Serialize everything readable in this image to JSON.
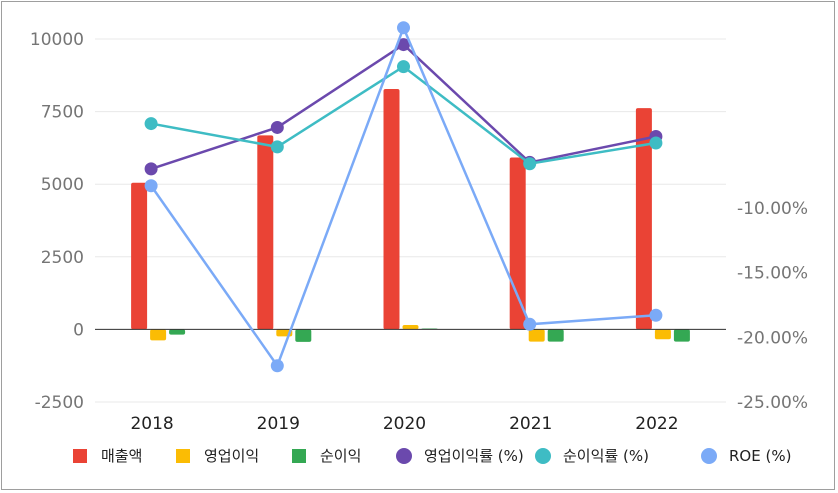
{
  "chart_data": {
    "type": "bar",
    "categories": [
      "2018",
      "2019",
      "2020",
      "2021",
      "2022"
    ],
    "left_axis": {
      "ylim": [
        -2500,
        10000
      ],
      "ticks": [
        "10000",
        "7500",
        "5000",
        "2500",
        "0",
        "-2500"
      ]
    },
    "right_axis": {
      "ylim": [
        -25,
        -5
      ],
      "ticks": [
        "-10.00%",
        "-15.00%",
        "-20.00%",
        "-25.00%"
      ]
    },
    "grid": true,
    "legend_position": "bottom",
    "series": [
      {
        "name": "매출액",
        "type": "bar",
        "axis": "left",
        "color": "#ea4335",
        "values": [
          5050,
          6680,
          8280,
          5920,
          7620
        ]
      },
      {
        "name": "영업이익",
        "type": "bar",
        "axis": "left",
        "color": "#fbbc04",
        "values": [
          -380,
          -240,
          150,
          -420,
          -340
        ]
      },
      {
        "name": "순이익",
        "type": "bar",
        "axis": "left",
        "color": "#34a853",
        "values": [
          -180,
          -430,
          30,
          -420,
          -420
        ]
      },
      {
        "name": "영업이익률 (%)",
        "type": "line",
        "axis": "right",
        "color": "#6b49ad",
        "values": [
          -7.0,
          -3.8,
          2.6,
          -6.5,
          -4.5
        ]
      },
      {
        "name": "순이익률 (%)",
        "type": "line",
        "axis": "right",
        "color": "#3ebcc4",
        "values": [
          -3.5,
          -5.3,
          0.9,
          -6.6,
          -5.0
        ]
      },
      {
        "name": "ROE (%)",
        "type": "line",
        "axis": "right",
        "color": "#7baaf7",
        "values": [
          -8.3,
          -22.2,
          3.9,
          -19.0,
          -18.3
        ]
      }
    ]
  }
}
